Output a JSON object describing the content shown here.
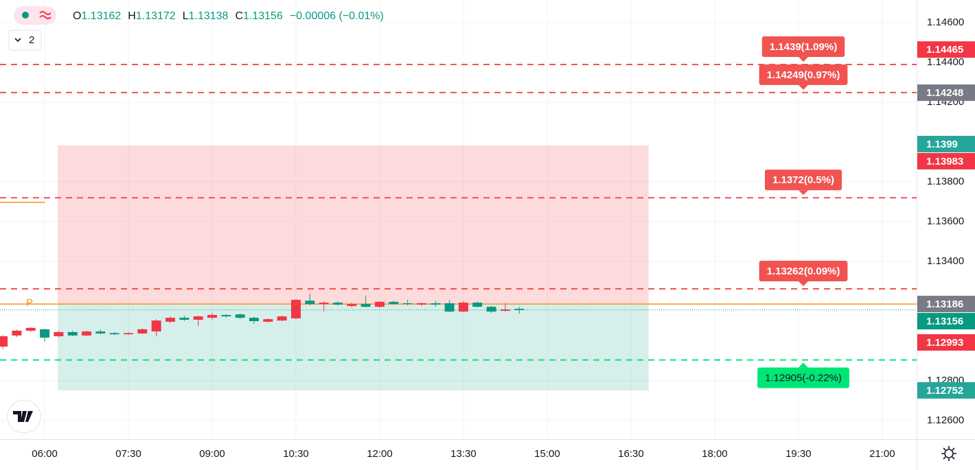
{
  "chart_data": {
    "type": "candlestick",
    "legend": {
      "open_label": "O",
      "high_label": "H",
      "low_label": "L",
      "close_label": "C",
      "change": "−0.00006 (−0.01%)"
    },
    "indicator_count": 2,
    "x": [
      "05:15",
      "05:30",
      "05:45",
      "06:00",
      "06:15",
      "06:30",
      "06:45",
      "07:00",
      "07:15",
      "07:30",
      "07:45",
      "08:00",
      "08:15",
      "08:30",
      "08:45",
      "09:00",
      "09:15",
      "09:30",
      "09:45",
      "10:00",
      "10:15",
      "10:30",
      "10:45",
      "11:00",
      "11:15",
      "11:30",
      "11:45",
      "12:00",
      "12:15",
      "12:30",
      "12:45",
      "13:00",
      "13:15",
      "13:30",
      "13:45",
      "14:00",
      "14:15",
      "14:30"
    ],
    "open": [
      1.12972,
      1.13028,
      1.13052,
      1.13059,
      1.13024,
      1.13045,
      1.13028,
      1.13048,
      1.1304,
      1.13034,
      1.13038,
      1.13048,
      1.13097,
      1.13117,
      1.13107,
      1.13117,
      1.13131,
      1.13134,
      1.13117,
      1.13097,
      1.13103,
      1.13114,
      1.13203,
      1.13186,
      1.13193,
      1.13176,
      1.13186,
      1.13172,
      1.13197,
      1.1319,
      1.13183,
      1.1319,
      1.1319,
      1.13148,
      1.13193,
      1.13172,
      1.13152,
      1.13162
    ],
    "high": [
      1.1303,
      1.13058,
      1.1307,
      1.13062,
      1.1305,
      1.13052,
      1.13052,
      1.13058,
      1.13045,
      1.13045,
      1.13064,
      1.1311,
      1.13124,
      1.13128,
      1.13128,
      1.13141,
      1.13135,
      1.13138,
      1.13121,
      1.13114,
      1.13128,
      1.1321,
      1.13238,
      1.132,
      1.132,
      1.13193,
      1.13228,
      1.132,
      1.13203,
      1.13207,
      1.13193,
      1.132,
      1.13207,
      1.132,
      1.13197,
      1.13176,
      1.1319,
      1.13172
    ],
    "low": [
      1.1296,
      1.1302,
      1.13045,
      1.12997,
      1.1302,
      1.13024,
      1.13024,
      1.13034,
      1.1303,
      1.1303,
      1.13034,
      1.13024,
      1.1309,
      1.131,
      1.13076,
      1.13107,
      1.13117,
      1.1311,
      1.13086,
      1.13093,
      1.131,
      1.1311,
      1.13179,
      1.13148,
      1.13179,
      1.13169,
      1.13169,
      1.13166,
      1.13183,
      1.13179,
      1.13176,
      1.13172,
      1.13145,
      1.13145,
      1.13169,
      1.13141,
      1.13148,
      1.13138
    ],
    "close": [
      1.13024,
      1.13052,
      1.13066,
      1.13017,
      1.13045,
      1.13028,
      1.13048,
      1.13038,
      1.13034,
      1.1304,
      1.13059,
      1.13103,
      1.13117,
      1.13107,
      1.13124,
      1.13131,
      1.13124,
      1.13117,
      1.131,
      1.1311,
      1.13124,
      1.13207,
      1.13186,
      1.13193,
      1.13183,
      1.13186,
      1.13172,
      1.13197,
      1.13186,
      1.13186,
      1.1319,
      1.13183,
      1.13148,
      1.13193,
      1.13172,
      1.13148,
      1.13159,
      1.13156
    ],
    "up_color": "#f23645",
    "down_color": "#089981",
    "xlim": [
      "05:12",
      "21:37"
    ],
    "xticks": [
      "06:00",
      "07:30",
      "09:00",
      "10:30",
      "12:00",
      "13:30",
      "15:00",
      "16:30",
      "18:00",
      "19:30",
      "21:00"
    ],
    "ylim": [
      1.12507,
      1.14714
    ],
    "yticks": [
      {
        "value": 1.146,
        "label": "1.14600"
      },
      {
        "value": 1.144,
        "label": "1.14400"
      },
      {
        "value": 1.142,
        "label": "1.14200"
      },
      {
        "value": 1.138,
        "label": "1.13800"
      },
      {
        "value": 1.136,
        "label": "1.13600"
      },
      {
        "value": 1.134,
        "label": "1.13400"
      },
      {
        "value": 1.128,
        "label": "1.12800"
      },
      {
        "value": 1.126,
        "label": "1.12600"
      }
    ],
    "grid": true,
    "levels": [
      {
        "value": 1.1439,
        "label": "1.1439(1.09%)",
        "color": "#f05350"
      },
      {
        "value": 1.14249,
        "label": "1.14249(0.97%)",
        "color": "#f05350"
      },
      {
        "value": 1.1372,
        "label": "1.1372(0.5%)",
        "color": "#f05350"
      },
      {
        "value": 1.13262,
        "label": "1.13262(0.09%)",
        "color": "#f05350"
      },
      {
        "value": 1.12905,
        "label": "1.12905(-0.22%)",
        "color": "#00e676"
      }
    ],
    "position": {
      "entry": 1.13186,
      "stop": 1.13983,
      "target": 1.12752,
      "start": "06:14",
      "end": "16:49",
      "label": "P",
      "entry_color": "#f7931a"
    },
    "side_line": {
      "value": 1.13697,
      "start": "05:12",
      "end": "06:00",
      "color": "#f7931a"
    },
    "price_labels": [
      {
        "value": 1.14465,
        "color": "#f23645"
      },
      {
        "value": 1.14248,
        "color": "#787b86"
      },
      {
        "value": 1.1399,
        "color": "#26a69a"
      },
      {
        "value": 1.13983,
        "color": "#f23645"
      },
      {
        "value": 1.13186,
        "color": "#787b86"
      },
      {
        "value": 1.13156,
        "color": "#089981"
      },
      {
        "value": 1.12993,
        "color": "#f23645"
      },
      {
        "value": 1.12752,
        "color": "#26a69a"
      }
    ]
  }
}
